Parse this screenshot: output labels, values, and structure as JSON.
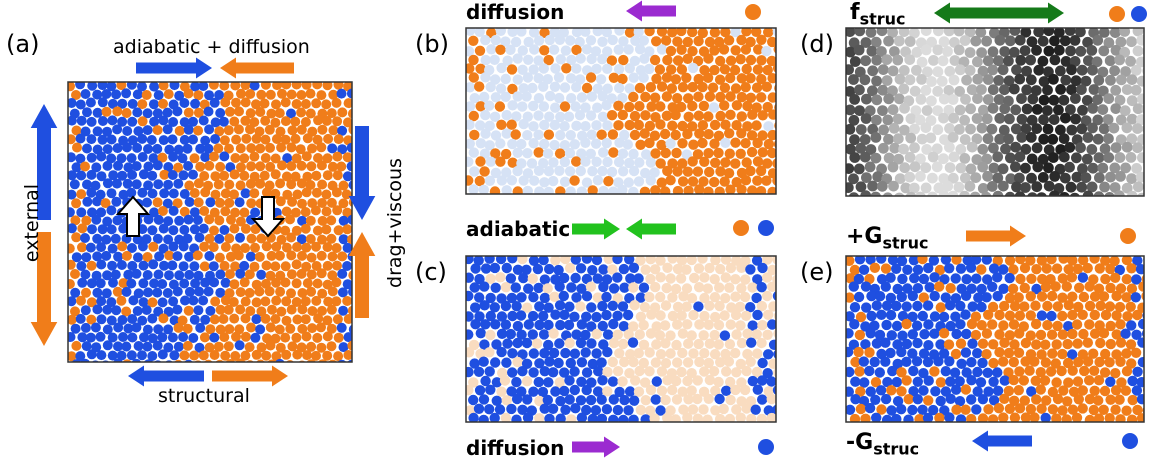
{
  "colors": {
    "blue": "#1f4fe0",
    "orange": "#f07d1a",
    "purple": "#9b2bd0",
    "green": "#22c21e",
    "dark_green": "#157a19",
    "light_blue": "#d6e2f5",
    "light_orange": "#f9dcc0"
  },
  "panel_a": {
    "label": "(a)",
    "top_label": "adiabatic + diffusion",
    "bottom_label": "structural",
    "left_label": "external",
    "right_label": "drag+viscous"
  },
  "panel_b": {
    "label": "(b)",
    "title": "diffusion"
  },
  "panel_c": {
    "label": "(c)",
    "title": "adiabatic",
    "bottom_title": "diffusion"
  },
  "panel_d": {
    "label": "(d)",
    "title_main": "f",
    "title_sub": "struc"
  },
  "panel_e": {
    "label": "(e)",
    "top_main": "+G",
    "top_sub": "struc",
    "bottom_main": "-G",
    "bottom_sub": "struc"
  }
}
